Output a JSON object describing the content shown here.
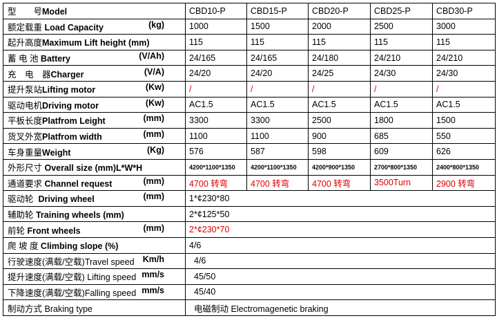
{
  "colors": {
    "highlight": "#e00000"
  },
  "rows": [
    {
      "cn": "型　　号",
      "en": "Model",
      "unit": "",
      "values": [
        "CBD10-P",
        "CBD15-P",
        "CBD20-P",
        "CBD25-P",
        "CBD30-P"
      ]
    },
    {
      "cn": "额定载重",
      "en": " Load Capacity",
      "unit": "(kg)",
      "values": [
        "1000",
        "1500",
        "2000",
        "2500",
        "3000"
      ]
    },
    {
      "cn": "起升高度",
      "en": "Maximum Lift height (mm)",
      "unit": "",
      "values": [
        "115",
        "115",
        "115",
        "115",
        "115"
      ]
    },
    {
      "cn": "蓄 电 池",
      "en": " Battery",
      "unit": "(V/Ah)",
      "values": [
        "24/165",
        "24/165",
        "24/180",
        "24/210",
        "24/210"
      ]
    },
    {
      "cn": "充　电　器",
      "en": "Charger",
      "unit": "(V/A)",
      "values": [
        "24/20",
        "24/20",
        "24/25",
        "24/30",
        "24/30"
      ]
    },
    {
      "cn": "提升泵站",
      "en": "Lifting motor",
      "unit": "(Kw)",
      "values": [
        "/",
        "/",
        "/",
        "/",
        "/"
      ],
      "red": true
    },
    {
      "cn": "驱动电机",
      "en": "Driving motor",
      "unit": "(Kw)",
      "values": [
        "AC1.5",
        "AC1.5",
        "AC1.5",
        "AC1.5",
        "AC1.5"
      ]
    },
    {
      "cn": "平板长度",
      "en": "Platfrom Leight",
      "unit": "(mm)",
      "values": [
        "3300",
        "3300",
        "2500",
        "1800",
        "1500"
      ]
    },
    {
      "cn": "货叉外宽",
      "en": "Platfrom width",
      "unit": "(mm)",
      "values": [
        "1100",
        "1100",
        "900",
        "685",
        "550"
      ]
    },
    {
      "cn": "车身重量",
      "en": "Weight",
      "unit": "(Kg)",
      "values": [
        "576",
        "587",
        "598",
        "609",
        "626"
      ]
    },
    {
      "cn": "外形尺寸",
      "en": " Overall size (mm)L*W*H",
      "unit": "",
      "values": [
        "4200*1100*1350",
        "4200*1100*1350",
        "4200*900*1350",
        "2700*800*1350",
        "2400*800*1350"
      ],
      "small": true
    },
    {
      "cn": "通道要求",
      "en": " Channel request",
      "unit": "(mm)",
      "values": [
        "4700 转弯",
        "4700 转弯",
        "4700 转弯",
        "3500Turn",
        "2900 转弯"
      ],
      "red": true
    },
    {
      "cn": "驱动轮",
      "en": "  Driving wheel",
      "unit": "(mm)",
      "value": "1*¢230*80"
    },
    {
      "cn": "辅助轮",
      "en": " Training wheels (mm)",
      "unit": "",
      "value": "2*¢125*50"
    },
    {
      "cn": "前轮",
      "en": " Front wheels",
      "unit": "(mm)",
      "value": "2*¢230*70",
      "red": true
    },
    {
      "cn": "爬 坡 度",
      "en": " Climbing slope (%)",
      "unit": "",
      "value": "4/6"
    },
    {
      "cn": "行驶速度(满载/空载)",
      "en": "Travel speed",
      "unit": "Km/h",
      "value": "4/6"
    },
    {
      "cn": "提升速度(满载/空载)",
      "en": " Lifting speed",
      "unit": "mm/s",
      "value": "45/50"
    },
    {
      "cn": "下降速度(满载/空载)",
      "en": "Falling speed",
      "unit": "mm/s",
      "value": "45/40"
    },
    {
      "cn": "制动方式",
      "en": " Braking type",
      "unit": "",
      "value": "电磁制动 Electromagenetic braking"
    }
  ]
}
